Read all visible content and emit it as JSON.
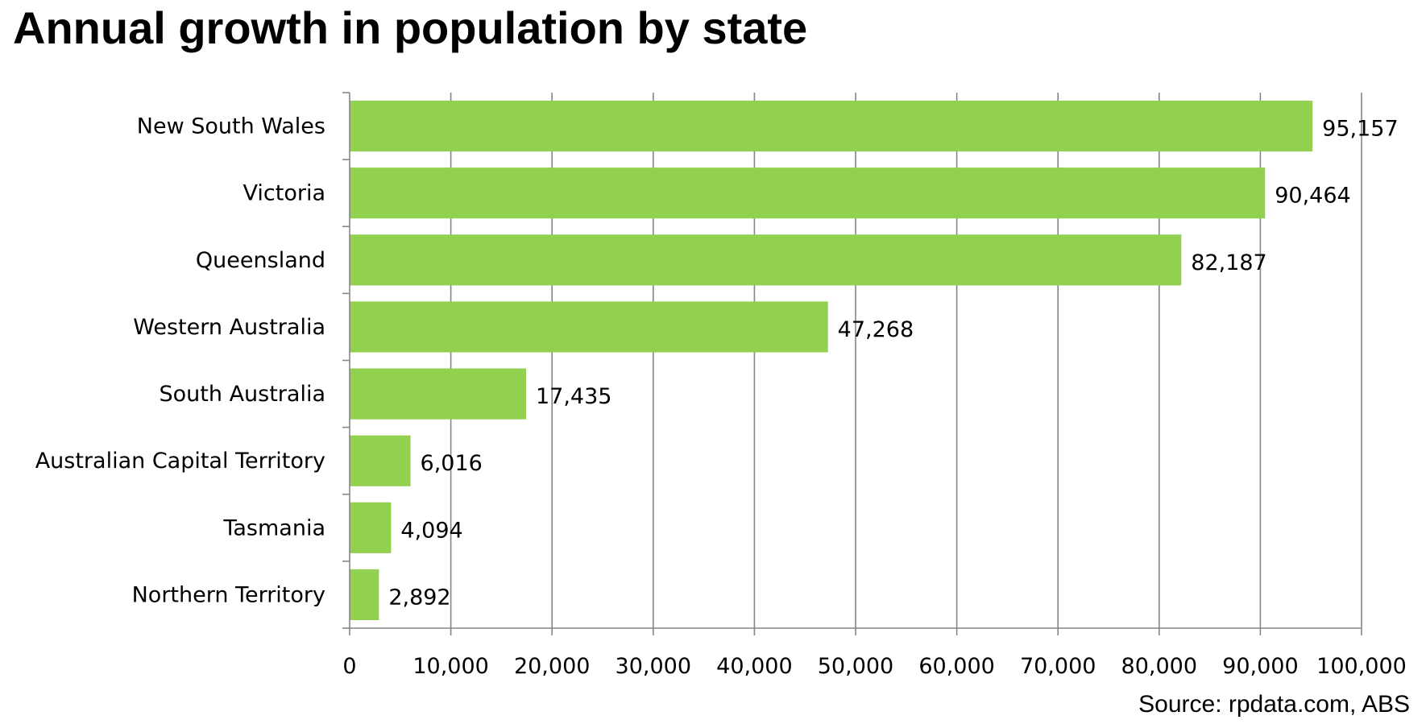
{
  "chart_data": {
    "type": "bar",
    "orientation": "horizontal",
    "title": "Annual growth in population by state",
    "source": "Source: rpdata.com,  ABS",
    "categories": [
      "New South Wales",
      "Victoria",
      "Queensland",
      "Western Australia",
      "South Australia",
      "Australian Capital Territory",
      "Tasmania",
      "Northern Territory"
    ],
    "values": [
      95157,
      90464,
      82187,
      47268,
      17435,
      6016,
      4094,
      2892
    ],
    "value_labels": [
      "95,157",
      "90,464",
      "82,187",
      "47,268",
      "17,435",
      "6,016",
      "4,094",
      "2,892"
    ],
    "xlim": [
      0,
      100000
    ],
    "xticks": [
      0,
      10000,
      20000,
      30000,
      40000,
      50000,
      60000,
      70000,
      80000,
      90000,
      100000
    ],
    "xtick_labels": [
      "0",
      "10,000",
      "20,000",
      "30,000",
      "40,000",
      "50,000",
      "60,000",
      "70,000",
      "80,000",
      "90,000",
      "100,000"
    ],
    "xlabel": "",
    "ylabel": "",
    "grid": "vertical",
    "legend": "none",
    "bar_color": "#92D050",
    "grid_color": "#868686"
  }
}
